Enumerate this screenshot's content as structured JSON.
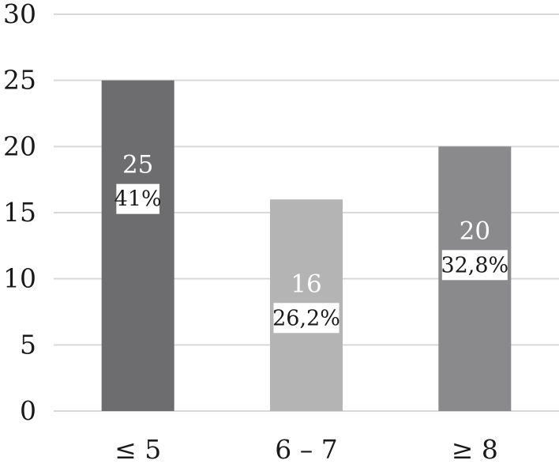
{
  "chart_data": {
    "type": "bar",
    "categories": [
      "≤ 5",
      "6 – 7",
      "≥ 8"
    ],
    "values": [
      25,
      16,
      20
    ],
    "percent_labels": [
      "41%",
      "26,2%",
      "32,8%"
    ],
    "value_labels": [
      "25",
      "16",
      "20"
    ],
    "colors": [
      "#6d6d6f",
      "#b4b4b5",
      "#8a8a8c"
    ],
    "yticks": [
      "0",
      "5",
      "10",
      "15",
      "20",
      "25",
      "30"
    ],
    "ylim": [
      0,
      30
    ],
    "grid": true,
    "title": "",
    "xlabel": "",
    "ylabel": ""
  }
}
